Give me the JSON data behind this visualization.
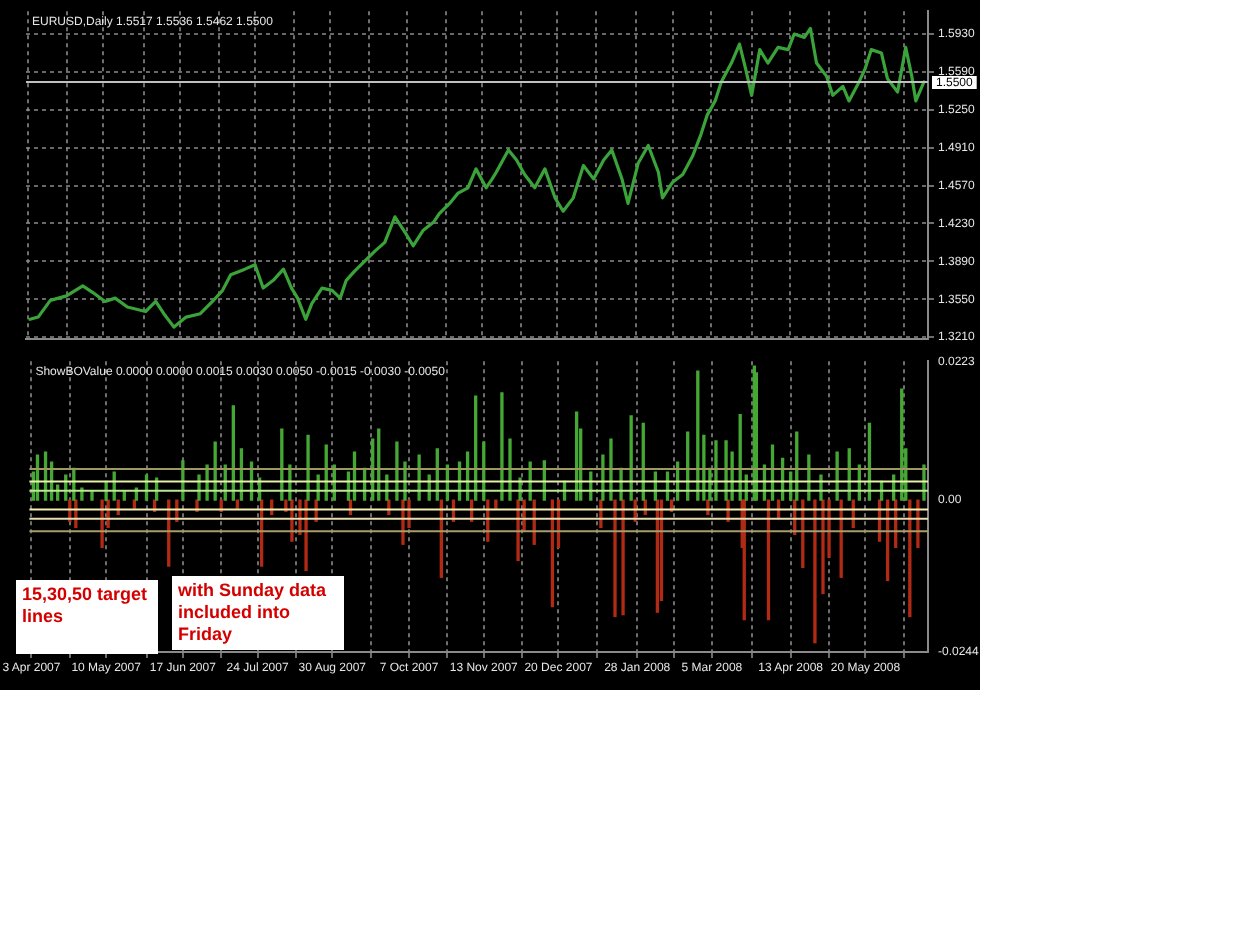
{
  "chart_data": [
    {
      "type": "line",
      "title": "EURUSD,Daily 1.5517 1.5536 1.5462 1.5500",
      "x": [
        "2007-04-04",
        "2007-04-08",
        "2007-04-14",
        "2007-04-22",
        "2007-04-30",
        "2007-05-05",
        "2007-05-11",
        "2007-05-16",
        "2007-05-22",
        "2007-05-31",
        "2007-06-05",
        "2007-06-09",
        "2007-06-14",
        "2007-06-20",
        "2007-06-27",
        "2007-07-03",
        "2007-07-08",
        "2007-07-12",
        "2007-07-19",
        "2007-07-24",
        "2007-07-28",
        "2007-08-02",
        "2007-08-07",
        "2007-08-11",
        "2007-08-14",
        "2007-08-18",
        "2007-08-21",
        "2007-08-26",
        "2007-08-31",
        "2007-09-04",
        "2007-09-07",
        "2007-09-11",
        "2007-09-16",
        "2007-09-21",
        "2007-09-26",
        "2007-10-01",
        "2007-10-06",
        "2007-10-10",
        "2007-10-15",
        "2007-10-20",
        "2007-10-23",
        "2007-10-28",
        "2007-11-01",
        "2007-11-06",
        "2007-11-10",
        "2007-11-15",
        "2007-11-18",
        "2007-11-20",
        "2007-11-26",
        "2007-11-30",
        "2007-12-04",
        "2007-12-09",
        "2007-12-14",
        "2007-12-19",
        "2007-12-23",
        "2007-12-28",
        "2008-01-02",
        "2008-01-07",
        "2008-01-12",
        "2008-01-16",
        "2008-01-21",
        "2008-01-24",
        "2008-01-29",
        "2008-02-03",
        "2008-02-08",
        "2008-02-10",
        "2008-02-15",
        "2008-02-20",
        "2008-02-25",
        "2008-02-29",
        "2008-03-03",
        "2008-03-07",
        "2008-03-10",
        "2008-03-15",
        "2008-03-19",
        "2008-03-22",
        "2008-03-25",
        "2008-03-29",
        "2008-04-02",
        "2008-04-07",
        "2008-04-12",
        "2008-04-15",
        "2008-04-20",
        "2008-04-23",
        "2008-04-26",
        "2008-05-01",
        "2008-05-04",
        "2008-05-09",
        "2008-05-12",
        "2008-05-17",
        "2008-05-20",
        "2008-05-23",
        "2008-05-28",
        "2008-05-31",
        "2008-06-05",
        "2008-06-09",
        "2008-06-12",
        "2008-06-14",
        "2008-06-18"
      ],
      "series": [
        {
          "color": "#3aa33a",
          "values": [
            1.337,
            1.339,
            1.354,
            1.358,
            1.367,
            1.361,
            1.353,
            1.356,
            1.348,
            1.344,
            1.353,
            1.342,
            1.33,
            1.339,
            1.342,
            1.353,
            1.363,
            1.377,
            1.382,
            1.386,
            1.365,
            1.372,
            1.382,
            1.365,
            1.356,
            1.337,
            1.351,
            1.365,
            1.363,
            1.356,
            1.372,
            1.38,
            1.389,
            1.398,
            1.406,
            1.429,
            1.415,
            1.403,
            1.417,
            1.424,
            1.432,
            1.441,
            1.45,
            1.455,
            1.472,
            1.455,
            1.463,
            1.469,
            1.489,
            1.48,
            1.467,
            1.455,
            1.472,
            1.446,
            1.434,
            1.446,
            1.475,
            1.463,
            1.48,
            1.489,
            1.463,
            1.441,
            1.477,
            1.493,
            1.469,
            1.446,
            1.46,
            1.467,
            1.484,
            1.503,
            1.52,
            1.533,
            1.55,
            1.567,
            1.584,
            1.562,
            1.538,
            1.579,
            1.567,
            1.581,
            1.579,
            1.593,
            1.59,
            1.598,
            1.567,
            1.555,
            1.538,
            1.546,
            1.533,
            1.55,
            1.562,
            1.579,
            1.576,
            1.553,
            1.541,
            1.581,
            1.555,
            1.533,
            1.55
          ]
        }
      ],
      "xlim": [
        "2007-04-02",
        "2008-06-20"
      ],
      "xticks": [
        {
          "value": "2007-04-03",
          "label": null
        },
        {
          "value": "2007-04-22",
          "label": null
        },
        {
          "value": "2007-05-10",
          "label": null
        },
        {
          "value": "2007-05-30",
          "label": null
        },
        {
          "value": "2007-06-17",
          "label": null
        },
        {
          "value": "2007-07-06",
          "label": null
        },
        {
          "value": "2007-07-24",
          "label": null
        },
        {
          "value": "2007-08-12",
          "label": null
        },
        {
          "value": "2007-08-30",
          "label": null
        },
        {
          "value": "2007-09-18",
          "label": null
        },
        {
          "value": "2007-10-07",
          "label": null
        },
        {
          "value": "2007-10-26",
          "label": null
        },
        {
          "value": "2007-11-13",
          "label": null
        },
        {
          "value": "2007-12-02",
          "label": null
        },
        {
          "value": "2007-12-20",
          "label": null
        },
        {
          "value": "2008-01-08",
          "label": null
        },
        {
          "value": "2008-01-28",
          "label": null
        },
        {
          "value": "2008-02-15",
          "label": null
        },
        {
          "value": "2008-03-05",
          "label": null
        },
        {
          "value": "2008-03-25",
          "label": null
        },
        {
          "value": "2008-04-13",
          "label": null
        },
        {
          "value": "2008-05-02",
          "label": null
        },
        {
          "value": "2008-05-20",
          "label": null
        },
        {
          "value": "2008-06-08",
          "label": null
        }
      ],
      "ylim": [
        1.3195,
        1.6135
      ],
      "yticks": [
        {
          "value": 1.593,
          "label": "1.5930"
        },
        {
          "value": 1.559,
          "label": "1.5590"
        },
        {
          "value": 1.525,
          "label": "1.5250"
        },
        {
          "value": 1.491,
          "label": "1.4910"
        },
        {
          "value": 1.457,
          "label": "1.4570"
        },
        {
          "value": 1.423,
          "label": "1.4230"
        },
        {
          "value": 1.389,
          "label": "1.3890"
        },
        {
          "value": 1.355,
          "label": "1.3550"
        },
        {
          "value": 1.321,
          "label": "1.3210"
        }
      ],
      "ref_lines": [
        {
          "axis": "y",
          "value": 1.55,
          "label": "1.5500",
          "color": "#c0c0c0"
        }
      ],
      "grid": true,
      "tick_labels": "y"
    },
    {
      "type": "bar",
      "title": "ShowBOValue 0.0000 0.0000 0.0015 0.0030 0.0050 -0.0015 -0.0030 -0.0050",
      "series": [
        {
          "color": "#46a834",
          "x": [
            "2007-04-04",
            "2007-04-06",
            "2007-04-10",
            "2007-04-13",
            "2007-04-16",
            "2007-04-20",
            "2007-04-24",
            "2007-04-28",
            "2007-05-03",
            "2007-05-10",
            "2007-05-14",
            "2007-05-19",
            "2007-05-25",
            "2007-05-30",
            "2007-06-04",
            "2007-06-17",
            "2007-06-25",
            "2007-06-29",
            "2007-07-03",
            "2007-07-08",
            "2007-07-12",
            "2007-07-16",
            "2007-07-21",
            "2007-07-25",
            "2007-08-05",
            "2007-08-09",
            "2007-08-18",
            "2007-08-23",
            "2007-08-27",
            "2007-08-31",
            "2007-09-07",
            "2007-09-10",
            "2007-09-15",
            "2007-09-19",
            "2007-09-22",
            "2007-09-26",
            "2007-10-01",
            "2007-10-05",
            "2007-10-12",
            "2007-10-17",
            "2007-10-21",
            "2007-10-26",
            "2007-11-01",
            "2007-11-05",
            "2007-11-09",
            "2007-11-13",
            "2007-11-22",
            "2007-11-26",
            "2007-12-01",
            "2007-12-06",
            "2007-12-13",
            "2007-12-23",
            "2007-12-29",
            "2007-12-31",
            "2008-01-05",
            "2008-01-11",
            "2008-01-15",
            "2008-01-20",
            "2008-01-25",
            "2008-01-31",
            "2008-02-06",
            "2008-02-12",
            "2008-02-17",
            "2008-02-22",
            "2008-02-27",
            "2008-03-01",
            "2008-03-04",
            "2008-03-07",
            "2008-03-12",
            "2008-03-15",
            "2008-03-19",
            "2008-03-22",
            "2008-03-26",
            "2008-03-27",
            "2008-03-31",
            "2008-04-04",
            "2008-04-09",
            "2008-04-13",
            "2008-04-16",
            "2008-04-22",
            "2008-04-28",
            "2008-05-06",
            "2008-05-12",
            "2008-05-17",
            "2008-05-22",
            "2008-05-28",
            "2008-06-03",
            "2008-06-07",
            "2008-06-09",
            "2008-06-18"
          ],
          "values": [
            0.0045,
            0.0072,
            0.0077,
            0.0061,
            0.0024,
            0.004,
            0.0051,
            0.0019,
            0.0014,
            0.003,
            0.0045,
            0.0014,
            0.0019,
            0.004,
            0.0035,
            0.0063,
            0.004,
            0.0056,
            0.0093,
            0.0056,
            0.0151,
            0.0082,
            0.0061,
            0.0035,
            0.0114,
            0.0056,
            0.0104,
            0.004,
            0.0088,
            0.0056,
            0.0045,
            0.0077,
            0.0051,
            0.0098,
            0.0114,
            0.004,
            0.0093,
            0.0061,
            0.0072,
            0.004,
            0.0082,
            0.0056,
            0.0061,
            0.0077,
            0.0167,
            0.0093,
            0.0172,
            0.0098,
            0.0035,
            0.0061,
            0.0063,
            0.003,
            0.0141,
            0.0114,
            0.0045,
            0.0072,
            0.0098,
            0.0051,
            0.0135,
            0.0123,
            0.0045,
            0.0045,
            0.0061,
            0.0109,
            0.0207,
            0.0104,
            0.0051,
            0.0095,
            0.0095,
            0.0077,
            0.0137,
            0.004,
            0.0215,
            0.0204,
            0.0056,
            0.0088,
            0.0067,
            0.0045,
            0.0109,
            0.0072,
            0.004,
            0.0077,
            0.0082,
            0.0056,
            0.0123,
            0.003,
            0.004,
            0.0178,
            0.0082,
            0.0056
          ]
        },
        {
          "color": "#b02a14",
          "x": [
            "2007-04-22",
            "2007-04-25",
            "2007-05-08",
            "2007-05-11",
            "2007-05-16",
            "2007-05-24",
            "2007-06-03",
            "2007-06-10",
            "2007-06-14",
            "2007-06-24",
            "2007-07-06",
            "2007-07-14",
            "2007-07-26",
            "2007-07-31",
            "2007-08-07",
            "2007-08-10",
            "2007-08-14",
            "2007-08-17",
            "2007-08-22",
            "2007-09-08",
            "2007-09-27",
            "2007-10-04",
            "2007-10-07",
            "2007-10-23",
            "2007-10-29",
            "2007-11-07",
            "2007-11-15",
            "2007-11-19",
            "2007-11-30",
            "2007-12-03",
            "2007-12-08",
            "2007-12-17",
            "2007-12-20",
            "2008-01-10",
            "2008-01-17",
            "2008-01-21",
            "2008-01-27",
            "2008-02-01",
            "2008-02-07",
            "2008-02-09",
            "2008-02-14",
            "2008-03-03",
            "2008-03-13",
            "2008-03-20",
            "2008-03-21",
            "2008-04-02",
            "2008-04-07",
            "2008-04-15",
            "2008-04-19",
            "2008-04-25",
            "2008-04-29",
            "2008-05-02",
            "2008-05-08",
            "2008-05-14",
            "2008-05-27",
            "2008-05-31",
            "2008-06-04",
            "2008-06-11",
            "2008-06-15"
          ],
          "values": [
            -0.0034,
            -0.0044,
            -0.0076,
            -0.0044,
            -0.0023,
            -0.0013,
            -0.0018,
            -0.0106,
            -0.0034,
            -0.0018,
            -0.0018,
            -0.0013,
            -0.0106,
            -0.0023,
            -0.0018,
            -0.0066,
            -0.0055,
            -0.0113,
            -0.0034,
            -0.0023,
            -0.0023,
            -0.0071,
            -0.0044,
            -0.0124,
            -0.0034,
            -0.0034,
            -0.0066,
            -0.0013,
            -0.0097,
            -0.005,
            -0.0071,
            -0.0171,
            -0.0076,
            -0.0044,
            -0.0187,
            -0.0184,
            -0.0034,
            -0.0023,
            -0.018,
            -0.0161,
            -0.0018,
            -0.0023,
            -0.0034,
            -0.0076,
            -0.0192,
            -0.0192,
            -0.0029,
            -0.0055,
            -0.0108,
            -0.0229,
            -0.015,
            -0.0092,
            -0.0124,
            -0.0044,
            -0.0066,
            -0.0129,
            -0.0076,
            -0.0187,
            -0.0076
          ]
        }
      ],
      "xlim": [
        "2007-04-02",
        "2008-06-20"
      ],
      "xticks": [
        {
          "value": "2007-04-03",
          "label": "3 Apr 2007"
        },
        {
          "value": "2007-04-22",
          "label": null
        },
        {
          "value": "2007-05-10",
          "label": "10 May 2007"
        },
        {
          "value": "2007-05-30",
          "label": null
        },
        {
          "value": "2007-06-17",
          "label": "17 Jun 2007"
        },
        {
          "value": "2007-07-06",
          "label": null
        },
        {
          "value": "2007-07-24",
          "label": "24 Jul 2007"
        },
        {
          "value": "2007-08-12",
          "label": null
        },
        {
          "value": "2007-08-30",
          "label": "30 Aug 2007"
        },
        {
          "value": "2007-09-18",
          "label": null
        },
        {
          "value": "2007-10-07",
          "label": "7 Oct 2007"
        },
        {
          "value": "2007-10-26",
          "label": null
        },
        {
          "value": "2007-11-13",
          "label": "13 Nov 2007"
        },
        {
          "value": "2007-12-02",
          "label": null
        },
        {
          "value": "2007-12-20",
          "label": "20 Dec 2007"
        },
        {
          "value": "2008-01-08",
          "label": null
        },
        {
          "value": "2008-01-28",
          "label": "28 Jan 2008"
        },
        {
          "value": "2008-02-15",
          "label": null
        },
        {
          "value": "2008-03-05",
          "label": "5 Mar 2008"
        },
        {
          "value": "2008-03-25",
          "label": null
        },
        {
          "value": "2008-04-13",
          "label": "13 Apr 2008"
        },
        {
          "value": "2008-05-02",
          "label": null
        },
        {
          "value": "2008-05-20",
          "label": "20 May 2008"
        },
        {
          "value": "2008-06-08",
          "label": null
        }
      ],
      "ylim": [
        -0.0244,
        0.0223
      ],
      "yticks": [
        0.0223,
        {
          "value": 0,
          "label": "0.00"
        },
        -0.0244
      ],
      "ref_lines": [
        {
          "axis": "y",
          "value": 0.005,
          "color": "#9c9a5c"
        },
        {
          "axis": "y",
          "value": 0.003,
          "color": "#e6f2a8"
        },
        {
          "axis": "y",
          "value": 0.0015,
          "color": "#b8e890"
        },
        {
          "axis": "y",
          "value": -0.0015,
          "color": "#f2eeb0"
        },
        {
          "axis": "y",
          "value": -0.003,
          "color": "#e8dcb0"
        },
        {
          "axis": "y",
          "value": -0.005,
          "color": "#a89c6c"
        }
      ],
      "grid": "x",
      "annotations": [
        "15,30,50 target lines",
        "with Sunday data included into Friday"
      ]
    }
  ]
}
